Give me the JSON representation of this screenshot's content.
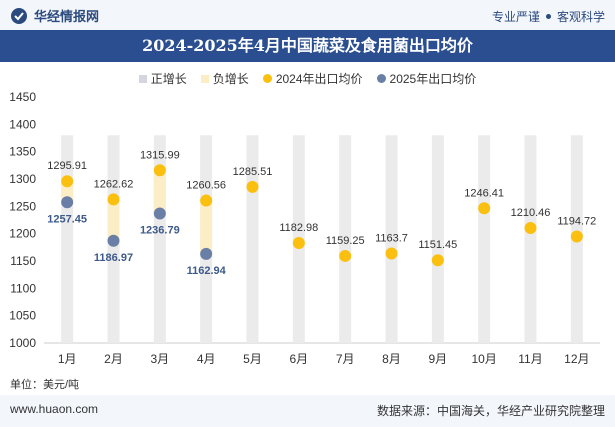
{
  "header": {
    "brand": "华经情报网",
    "tag1": "专业严谨",
    "tag2": "客观科学"
  },
  "chart_data": {
    "type": "bar",
    "title": "2024-2025年4月中国蔬菜及食用菌出口均价",
    "categories": [
      "1月",
      "2月",
      "3月",
      "4月",
      "5月",
      "6月",
      "7月",
      "8月",
      "9月",
      "10月",
      "11月",
      "12月"
    ],
    "ylim": [
      1000,
      1450
    ],
    "yticks": [
      1000,
      1050,
      1100,
      1150,
      1200,
      1250,
      1300,
      1350,
      1400,
      1450
    ],
    "legend": [
      "正增长",
      "负增长",
      "2024年出口均价",
      "2025年出口均价"
    ],
    "series": [
      {
        "name": "2024年出口均价",
        "values": [
          1295.91,
          1262.62,
          1315.99,
          1260.56,
          1285.51,
          1182.98,
          1159.25,
          1163.7,
          1151.45,
          1246.41,
          1210.46,
          1194.72
        ]
      },
      {
        "name": "2025年出口均价",
        "values": [
          1257.45,
          1186.97,
          1236.79,
          1162.94,
          null,
          null,
          null,
          null,
          null,
          null,
          null,
          null
        ]
      }
    ],
    "labels_2024": [
      "1295.91",
      "1262.62",
      "1315.99",
      "1260.56",
      "1285.51",
      "1182.98",
      "1159.25",
      "1163.7",
      "1151.45",
      "1246.41",
      "1210.46",
      "1194.72"
    ],
    "labels_2025": [
      "1257.45",
      "1186.97",
      "1236.79",
      "1162.94"
    ],
    "unit": "单位：美元/吨"
  },
  "colors": {
    "c2024": "#fbbf0f",
    "c2025": "#6a7fa6",
    "positive": "#d3d6de",
    "negative": "#fbedc6",
    "bg_bar": "#ebebeb"
  },
  "footer": {
    "site": "www.huaon.com",
    "source": "数据来源：中国海关，华经产业研究院整理"
  }
}
